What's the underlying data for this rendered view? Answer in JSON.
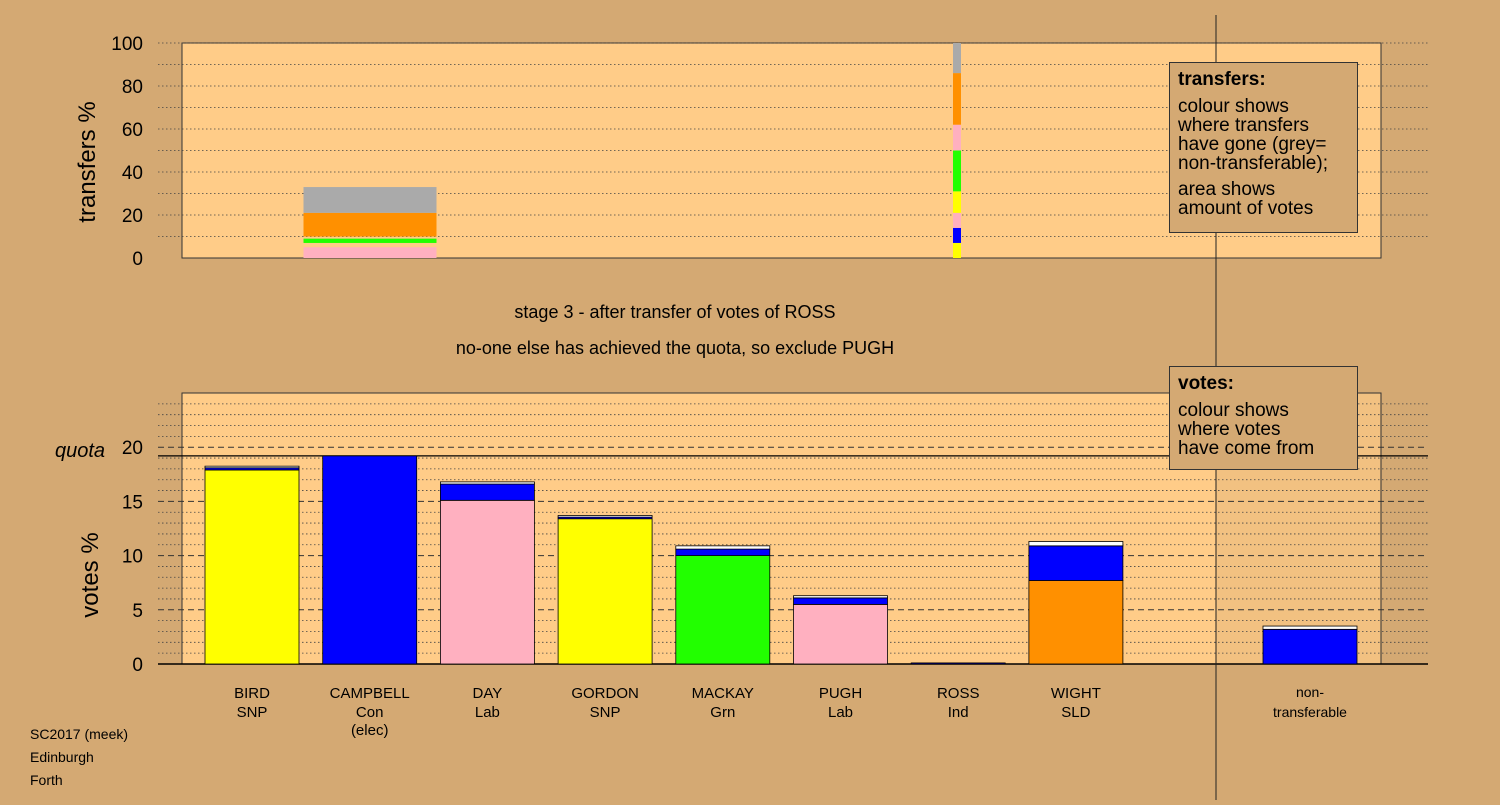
{
  "stage_text": "stage 3 - after transfer of votes of ROSS",
  "note_text": "no-one else has achieved the quota, so exclude PUGH",
  "colors": {
    "background": "#d4a973",
    "plot_bg": "#ffcc88",
    "SNP": "#ffff00",
    "Con": "#0000ff",
    "Lab": "#ffb0c0",
    "Grn": "#22ff00",
    "Ind": "#ffffff",
    "SLD": "#ff9000",
    "grey": "#aaaaaa"
  },
  "transfers_legend": {
    "title": "transfers:",
    "lines": [
      "colour shows",
      "where transfers",
      "have gone (grey=",
      "non-transferable);"
    ],
    "lines2": [
      "area shows",
      "amount of votes"
    ]
  },
  "votes_legend": {
    "title": "votes:",
    "lines": [
      "colour shows",
      "where votes",
      "have come from"
    ]
  },
  "footer": {
    "line1": "SC2017 (meek)",
    "line2": "Edinburgh",
    "line3": "Forth"
  },
  "chart_data": [
    {
      "type": "bar",
      "title": "",
      "ylabel": "transfers %",
      "ylim": [
        0,
        100
      ],
      "yticks": [
        0,
        20,
        40,
        60,
        80,
        100
      ],
      "grid": true,
      "bars": [
        {
          "category": "CAMPBELL",
          "width_share": "partial",
          "segments": [
            {
              "party": "Lab",
              "from": 0,
              "to": 5
            },
            {
              "party": "Grn",
              "from": 7,
              "to": 9
            },
            {
              "party": "SLD",
              "from": 10,
              "to": 21
            },
            {
              "party": "grey",
              "from": 21,
              "to": 33
            }
          ]
        },
        {
          "category": "ROSS",
          "width_share": "narrow",
          "segments": [
            {
              "party": "SNP",
              "from": 0,
              "to": 7
            },
            {
              "party": "Con",
              "from": 7,
              "to": 14
            },
            {
              "party": "Lab",
              "from": 14,
              "to": 21
            },
            {
              "party": "SNP",
              "from": 21,
              "to": 31
            },
            {
              "party": "Grn",
              "from": 31,
              "to": 50
            },
            {
              "party": "Lab",
              "from": 50,
              "to": 62
            },
            {
              "party": "SLD",
              "from": 62,
              "to": 86
            },
            {
              "party": "grey",
              "from": 86,
              "to": 100
            }
          ]
        }
      ]
    },
    {
      "type": "bar",
      "title": "",
      "ylabel": "votes %",
      "ylim": [
        0,
        25
      ],
      "yticks": [
        0,
        5,
        10,
        15,
        20
      ],
      "quota": 19.2,
      "quota_label": "quota",
      "grid": true,
      "candidates": [
        {
          "name": "BIRD",
          "party": "SNP",
          "extra": "",
          "segments": [
            {
              "party": "SNP",
              "value": 17.9
            },
            {
              "party": "Con",
              "value": 0.2
            },
            {
              "party": "Ind",
              "value": 0.15
            }
          ]
        },
        {
          "name": "CAMPBELL",
          "party": "Con",
          "extra": "(elec)",
          "segments": [
            {
              "party": "Con",
              "value": 19.2
            }
          ]
        },
        {
          "name": "DAY",
          "party": "Lab",
          "extra": "",
          "segments": [
            {
              "party": "Lab",
              "value": 15.1
            },
            {
              "party": "Con",
              "value": 1.5
            },
            {
              "party": "Ind",
              "value": 0.2
            }
          ]
        },
        {
          "name": "GORDON",
          "party": "SNP",
          "extra": "",
          "segments": [
            {
              "party": "SNP",
              "value": 13.4
            },
            {
              "party": "Con",
              "value": 0.15
            },
            {
              "party": "Ind",
              "value": 0.15
            }
          ]
        },
        {
          "name": "MACKAY",
          "party": "Grn",
          "extra": "",
          "segments": [
            {
              "party": "Grn",
              "value": 10.0
            },
            {
              "party": "Con",
              "value": 0.6
            },
            {
              "party": "Ind",
              "value": 0.3
            }
          ]
        },
        {
          "name": "PUGH",
          "party": "Lab",
          "extra": "",
          "segments": [
            {
              "party": "Lab",
              "value": 5.5
            },
            {
              "party": "Con",
              "value": 0.6
            },
            {
              "party": "Ind",
              "value": 0.2
            }
          ]
        },
        {
          "name": "ROSS",
          "party": "Ind",
          "extra": "",
          "segments": [
            {
              "party": "Con",
              "value": 0.1
            }
          ]
        },
        {
          "name": "WIGHT",
          "party": "SLD",
          "extra": "",
          "segments": [
            {
              "party": "SLD",
              "value": 7.7
            },
            {
              "party": "Con",
              "value": 3.2
            },
            {
              "party": "Ind",
              "value": 0.4
            }
          ]
        }
      ],
      "nontransferable": {
        "label1": "non-",
        "label2": "transferable",
        "segments": [
          {
            "party": "Con",
            "value": 3.2
          },
          {
            "party": "Ind",
            "value": 0.3
          }
        ]
      }
    }
  ]
}
